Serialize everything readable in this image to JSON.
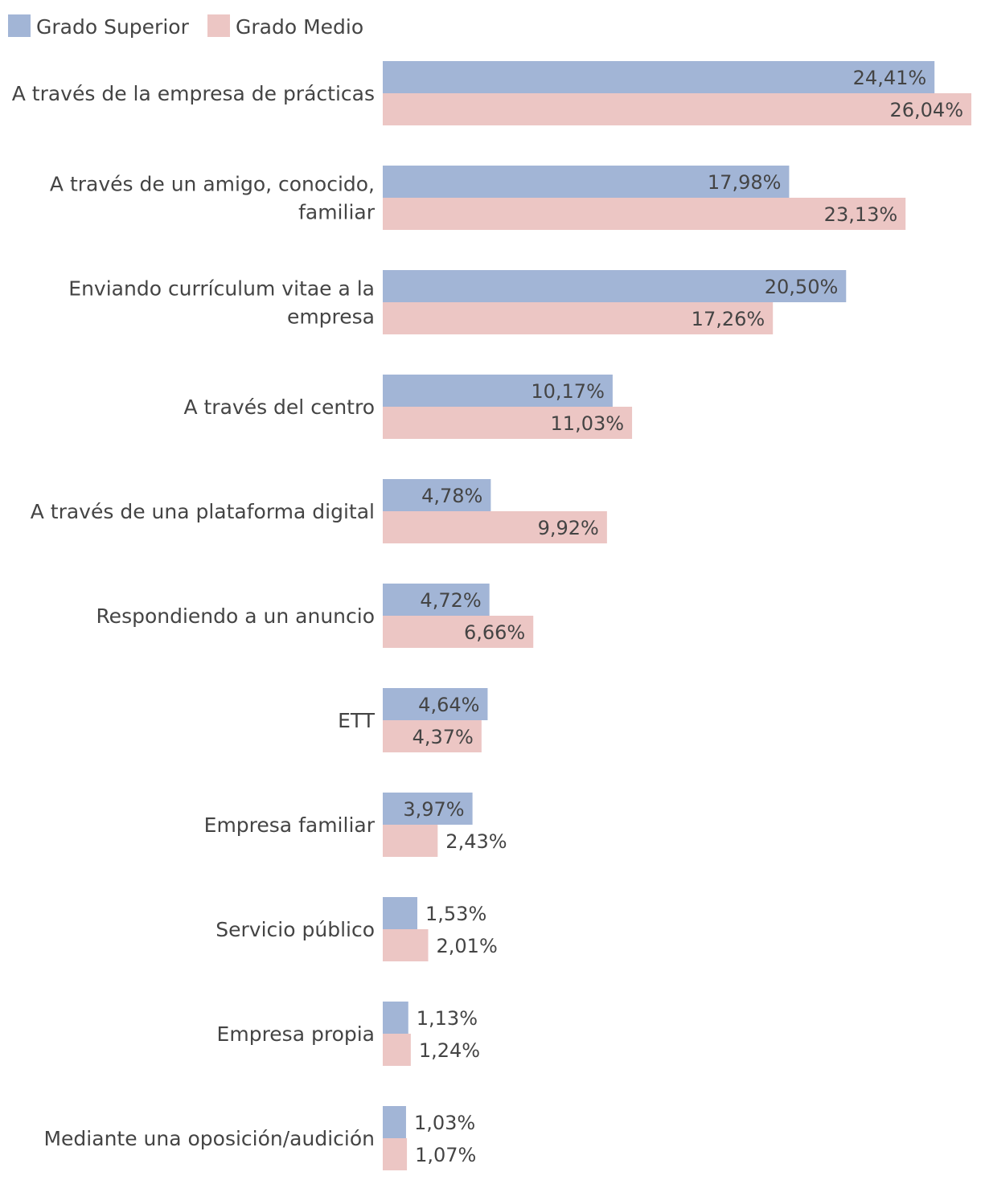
{
  "chart_data": {
    "type": "bar",
    "orientation": "horizontal",
    "title": "",
    "xlabel": "",
    "ylabel": "",
    "legend_position": "top-left",
    "grid": false,
    "xlim": [
      0,
      26.04
    ],
    "series": [
      {
        "name": "Grado Superior",
        "color": "#a2b5d6",
        "values": [
          24.41,
          17.98,
          20.5,
          10.17,
          4.78,
          4.72,
          4.64,
          3.97,
          1.53,
          1.13,
          1.03
        ],
        "labels": [
          "24,41%",
          "17,98%",
          "20,50%",
          "10,17%",
          "4,78%",
          "4,72%",
          "4,64%",
          "3,97%",
          "1,53%",
          "1,13%",
          "1,03%"
        ]
      },
      {
        "name": "Grado Medio",
        "color": "#ecc6c4",
        "values": [
          26.04,
          23.13,
          17.26,
          11.03,
          9.92,
          6.66,
          4.37,
          2.43,
          2.01,
          1.24,
          1.07
        ],
        "labels": [
          "26,04%",
          "23,13%",
          "17,26%",
          "11,03%",
          "9,92%",
          "6,66%",
          "4,37%",
          "2,43%",
          "2,01%",
          "1,24%",
          "1,07%"
        ]
      }
    ],
    "categories": [
      [
        "A través de la empresa de prácticas"
      ],
      [
        "A través de un amigo, conocido,",
        "familiar"
      ],
      [
        "Enviando currículum vitae a la",
        "empresa"
      ],
      [
        "A través del centro"
      ],
      [
        "A través de una plataforma digital"
      ],
      [
        "Respondiendo a un anuncio"
      ],
      [
        "ETT"
      ],
      [
        "Empresa familiar"
      ],
      [
        "Servicio público"
      ],
      [
        "Empresa propia"
      ],
      [
        "Mediante una oposición/audición"
      ]
    ]
  }
}
